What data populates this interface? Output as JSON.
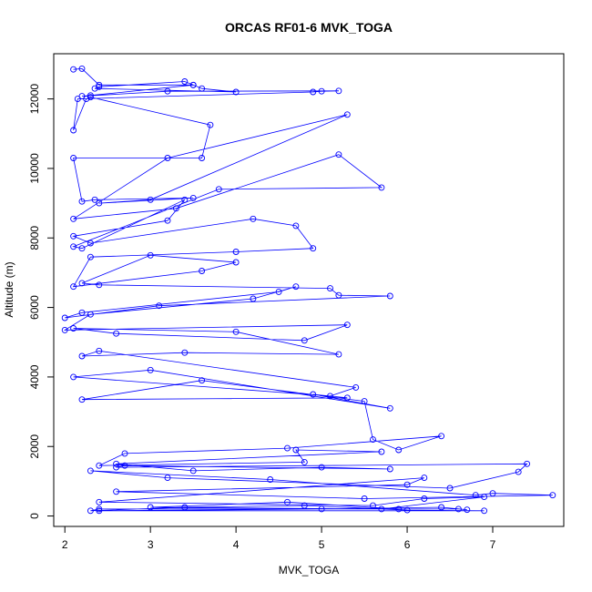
{
  "chart_data": {
    "type": "scatter",
    "title": "ORCAS RF01-6 MVK_TOGA",
    "xlabel": "MVK_TOGA",
    "ylabel": "Altitude (m)",
    "xlim": [
      1.87,
      7.83
    ],
    "ylim": [
      -300,
      13300
    ],
    "x_ticks": [
      2,
      3,
      4,
      5,
      6,
      7
    ],
    "y_ticks": [
      0,
      2000,
      4000,
      6000,
      8000,
      10000,
      12000
    ],
    "grid": false,
    "legend": "none",
    "color": "#0000ff",
    "marker": "open-circle",
    "connected": true,
    "series": [
      {
        "x": [
          2.1,
          2.2,
          2.4,
          3.5,
          3.6,
          4.0,
          2.35,
          2.4,
          3.4,
          3.5,
          2.3,
          2.2,
          3.2,
          5.2,
          5.0,
          4.9,
          2.15,
          2.1,
          2.25,
          2.3,
          3.7,
          3.6,
          2.1,
          2.2,
          2.35,
          3.5,
          2.4,
          3.0,
          5.3,
          3.2,
          2.1,
          3.3,
          5.2,
          5.7,
          3.8,
          2.1,
          2.2,
          3.4,
          3.2,
          2.1,
          2.3,
          4.2,
          4.7,
          4.9,
          4.0,
          2.3,
          2.1,
          3.6,
          4.0,
          3.0,
          2.2,
          2.4,
          5.1,
          5.2,
          5.8,
          3.1,
          2.0,
          2.2,
          4.5,
          4.7,
          4.2,
          2.3,
          2.0,
          5.3,
          4.8,
          2.6,
          2.1,
          4.0,
          5.2,
          3.4,
          2.2,
          2.4,
          5.4,
          5.1,
          2.1,
          3.0,
          5.8,
          4.9,
          5.3,
          2.2,
          3.6,
          5.5,
          5.6,
          5.9,
          6.4,
          4.6,
          2.7,
          2.4,
          4.8,
          4.7,
          5.7,
          2.6,
          3.5,
          5.0,
          5.8,
          2.7,
          2.6,
          7.4,
          7.3,
          6.5,
          3.2,
          2.3,
          4.4,
          6.8,
          7.0,
          7.7,
          5.5,
          2.6,
          6.0,
          6.2,
          2.4,
          5.6,
          6.2,
          6.9,
          5.7,
          3.0,
          4.6,
          5.9,
          6.6,
          2.4,
          2.3,
          3.4,
          4.8,
          6.0,
          6.9,
          2.4,
          5.0,
          6.4,
          6.7
        ],
        "y": [
          12850,
          12870,
          12400,
          12400,
          12300,
          12200,
          12300,
          12350,
          12500,
          12400,
          12100,
          12080,
          12220,
          12230,
          12220,
          12200,
          12000,
          11100,
          12000,
          12050,
          11250,
          10300,
          10300,
          9050,
          9100,
          9150,
          9000,
          9100,
          11550,
          10300,
          8550,
          8850,
          10400,
          9450,
          9400,
          7750,
          7700,
          9100,
          8500,
          8050,
          7850,
          8550,
          8350,
          7700,
          7600,
          7450,
          6600,
          7050,
          7300,
          7500,
          6700,
          6650,
          6550,
          6350,
          6330,
          6050,
          5700,
          5850,
          6450,
          6600,
          6250,
          5800,
          5350,
          5500,
          5050,
          5250,
          5400,
          5300,
          4650,
          4700,
          4600,
          4750,
          3700,
          3450,
          4000,
          4200,
          3100,
          3500,
          3400,
          3350,
          3900,
          3300,
          2200,
          1900,
          2300,
          1950,
          1800,
          1450,
          1550,
          1900,
          1850,
          1500,
          1300,
          1400,
          1350,
          1450,
          1400,
          1500,
          1270,
          800,
          1100,
          1300,
          1050,
          600,
          650,
          600,
          500,
          700,
          900,
          1100,
          400,
          300,
          500,
          550,
          200,
          250,
          400,
          200,
          200,
          200,
          150,
          250,
          300,
          170,
          150,
          150,
          200,
          250,
          180
        ]
      }
    ]
  }
}
